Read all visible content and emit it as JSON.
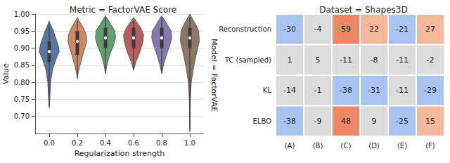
{
  "chart_data": [
    {
      "type": "violin",
      "title": "Metric = FactorVAE Score",
      "annotation": "Model = FactorVAE",
      "x_label": "Regularization strength",
      "y_label": "Value",
      "categories": [
        "0.0",
        "0.2",
        "0.4",
        "0.6",
        "0.8",
        "1.0"
      ],
      "violins": [
        {
          "color": "#5975a4",
          "min": 0.73,
          "q1": 0.86,
          "median": 0.89,
          "q3": 0.92,
          "max": 0.97,
          "density": [
            [
              0.725,
              0
            ],
            [
              0.75,
              0.05
            ],
            [
              0.8,
              0.12
            ],
            [
              0.84,
              0.3
            ],
            [
              0.87,
              0.6
            ],
            [
              0.89,
              0.85
            ],
            [
              0.91,
              0.75
            ],
            [
              0.93,
              0.55
            ],
            [
              0.95,
              0.35
            ],
            [
              0.97,
              0.1
            ],
            [
              0.98,
              0
            ]
          ]
        },
        {
          "color": "#cc8963",
          "min": 0.82,
          "q1": 0.88,
          "median": 0.92,
          "q3": 0.95,
          "max": 0.98,
          "density": [
            [
              0.81,
              0
            ],
            [
              0.83,
              0.08
            ],
            [
              0.86,
              0.3
            ],
            [
              0.89,
              0.55
            ],
            [
              0.92,
              0.8
            ],
            [
              0.94,
              0.75
            ],
            [
              0.96,
              0.5
            ],
            [
              0.98,
              0.15
            ],
            [
              0.99,
              0
            ]
          ]
        },
        {
          "color": "#5f9e6e",
          "min": 0.83,
          "q1": 0.9,
          "median": 0.93,
          "q3": 0.96,
          "max": 0.99,
          "density": [
            [
              0.825,
              0
            ],
            [
              0.85,
              0.12
            ],
            [
              0.88,
              0.35
            ],
            [
              0.91,
              0.7
            ],
            [
              0.93,
              0.85
            ],
            [
              0.95,
              0.8
            ],
            [
              0.97,
              0.45
            ],
            [
              0.99,
              0.1
            ],
            [
              0.995,
              0
            ]
          ]
        },
        {
          "color": "#b55d60",
          "min": 0.84,
          "q1": 0.9,
          "median": 0.93,
          "q3": 0.96,
          "max": 0.98,
          "density": [
            [
              0.835,
              0
            ],
            [
              0.86,
              0.2
            ],
            [
              0.89,
              0.55
            ],
            [
              0.92,
              0.8
            ],
            [
              0.94,
              0.85
            ],
            [
              0.96,
              0.6
            ],
            [
              0.98,
              0.2
            ],
            [
              0.99,
              0
            ]
          ]
        },
        {
          "color": "#857aab",
          "min": 0.83,
          "q1": 0.9,
          "median": 0.93,
          "q3": 0.96,
          "max": 0.99,
          "density": [
            [
              0.825,
              0
            ],
            [
              0.85,
              0.15
            ],
            [
              0.88,
              0.4
            ],
            [
              0.91,
              0.7
            ],
            [
              0.93,
              0.85
            ],
            [
              0.95,
              0.8
            ],
            [
              0.97,
              0.45
            ],
            [
              0.99,
              0.1
            ],
            [
              0.995,
              0
            ]
          ]
        },
        {
          "color": "#8d7866",
          "min": 0.66,
          "q1": 0.9,
          "median": 0.93,
          "q3": 0.96,
          "max": 0.99,
          "density": [
            [
              0.655,
              0
            ],
            [
              0.7,
              0.03
            ],
            [
              0.75,
              0.05
            ],
            [
              0.8,
              0.12
            ],
            [
              0.85,
              0.35
            ],
            [
              0.89,
              0.6
            ],
            [
              0.92,
              0.8
            ],
            [
              0.95,
              0.75
            ],
            [
              0.97,
              0.5
            ],
            [
              0.99,
              0.15
            ],
            [
              1.0,
              0
            ]
          ]
        }
      ],
      "ylim": [
        0.65,
        1.0
      ],
      "yticks": [
        {
          "value": 0.7,
          "label": "0.70"
        },
        {
          "value": 0.75,
          "label": "0.75"
        },
        {
          "value": 0.8,
          "label": "0.80"
        },
        {
          "value": 0.85,
          "label": "0.85"
        },
        {
          "value": 0.9,
          "label": "0.90"
        },
        {
          "value": 0.95,
          "label": "0.95"
        },
        {
          "value": 1.0,
          "label": "1.00"
        }
      ],
      "grid": true
    },
    {
      "type": "heatmap",
      "title": "Dataset = Shapes3D",
      "x": [
        "(A)",
        "(B)",
        "(C)",
        "(D)",
        "(E)",
        "(F)"
      ],
      "y": [
        "Reconstruction",
        "TC (sampled)",
        "KL",
        "ELBO"
      ],
      "values": [
        [
          -30,
          -4,
          59,
          22,
          -21,
          27
        ],
        [
          1,
          5,
          -11,
          -8,
          -11,
          -2
        ],
        [
          -14,
          -1,
          -38,
          -31,
          -11,
          -29
        ],
        [
          -38,
          -9,
          48,
          9,
          -25,
          15
        ]
      ],
      "colors": [
        [
          "#a9c4f0",
          "#dcdcdc",
          "#ee8866",
          "#f5b89b",
          "#a9c4f0",
          "#f5b89b"
        ],
        [
          "#dcdcdc",
          "#dcdcdc",
          "#dcdcdc",
          "#dcdcdc",
          "#dcdcdc",
          "#dcdcdc"
        ],
        [
          "#dcdcdc",
          "#dcdcdc",
          "#a9c4f0",
          "#a9c4f0",
          "#dcdcdc",
          "#a9c4f0"
        ],
        [
          "#a9c4f0",
          "#dcdcdc",
          "#ee8866",
          "#dcdcdc",
          "#a9c4f0",
          "#f5b89b"
        ]
      ],
      "data_labels": true
    }
  ]
}
